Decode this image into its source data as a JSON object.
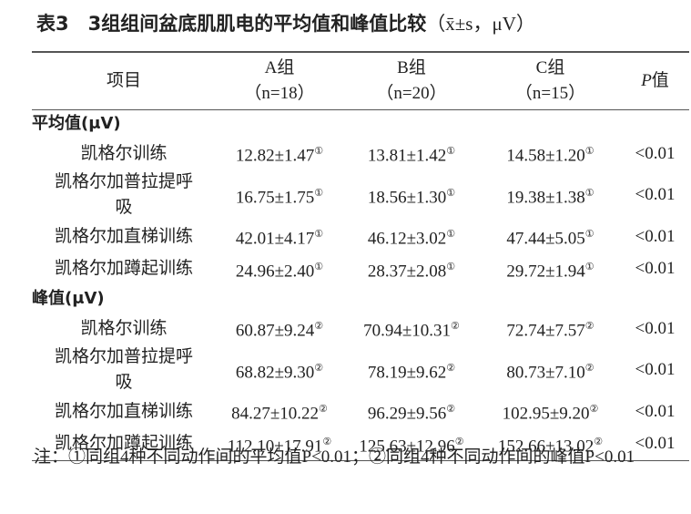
{
  "title": {
    "label": "表3",
    "text": "3组组间盆底肌肌电的平均值和峰值比较",
    "unit": "（x̄±s，μV）"
  },
  "table": {
    "header": {
      "item": "项目",
      "groups": [
        {
          "name": "A组",
          "n": "（n=18）"
        },
        {
          "name": "B组",
          "n": "（n=20）"
        },
        {
          "name": "C组",
          "n": "（n=15）"
        }
      ],
      "p": "P值"
    },
    "sections": [
      {
        "name": "平均值(μV)",
        "rows": [
          {
            "name": "凯格尔训练",
            "values": [
              "12.82±1.47",
              "13.81±1.42",
              "14.58±1.20"
            ],
            "mark": "①",
            "p": "<0.01"
          },
          {
            "name": "凯格尔加普拉提呼吸",
            "values": [
              "16.75±1.75",
              "18.56±1.30",
              "19.38±1.38"
            ],
            "mark": "①",
            "p": "<0.01"
          },
          {
            "name": "凯格尔加直梯训练",
            "values": [
              "42.01±4.17",
              "46.12±3.02",
              "47.44±5.05"
            ],
            "mark": "①",
            "p": "<0.01"
          },
          {
            "name": "凯格尔加蹲起训练",
            "values": [
              "24.96±2.40",
              "28.37±2.08",
              "29.72±1.94"
            ],
            "mark": "①",
            "p": "<0.01"
          }
        ]
      },
      {
        "name": "峰值(μV)",
        "rows": [
          {
            "name": "凯格尔训练",
            "values": [
              "60.87±9.24",
              "70.94±10.31",
              "72.74±7.57"
            ],
            "mark": "②",
            "p": "<0.01"
          },
          {
            "name": "凯格尔加普拉提呼吸",
            "values": [
              "68.82±9.30",
              "78.19±9.62",
              "80.73±7.10"
            ],
            "mark": "②",
            "p": "<0.01"
          },
          {
            "name": "凯格尔加直梯训练",
            "values": [
              "84.27±10.22",
              "96.29±9.56",
              "102.95±9.20"
            ],
            "mark": "②",
            "p": "<0.01"
          },
          {
            "name": "凯格尔加蹲起训练",
            "values": [
              "112.10±17.91",
              "125.63±12.96",
              "152.66±13.02"
            ],
            "mark": "②",
            "p": "<0.01"
          }
        ]
      }
    ]
  },
  "note": "注：①同组4种不同动作间的平均值P<0.01；②同组4种不同动作间的峰值P<0.01"
}
